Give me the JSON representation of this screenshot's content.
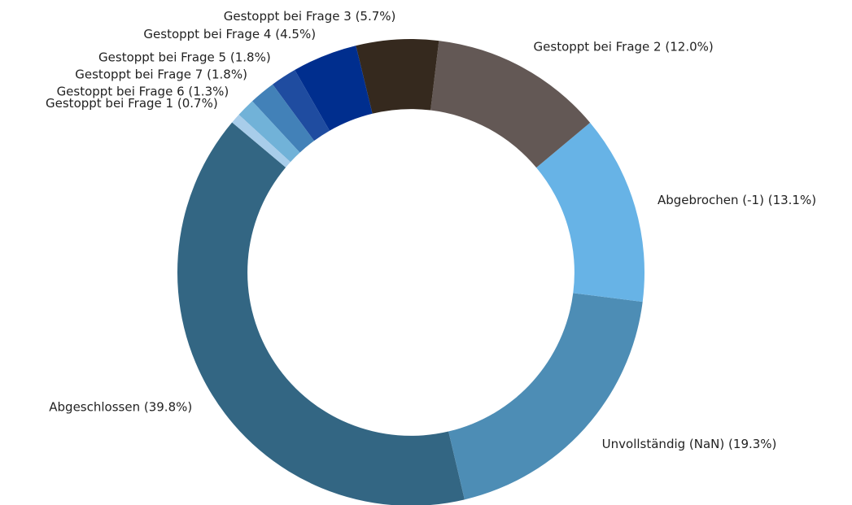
{
  "chart_data": {
    "type": "pie",
    "categories": [
      "Abgeschlossen",
      "Unvollständig (NaN)",
      "Abgebrochen (-1)",
      "Gestoppt bei Frage 2",
      "Gestoppt bei Frage 3",
      "Gestoppt bei Frage 4",
      "Gestoppt bei Frage 5",
      "Gestoppt bei Frage 7",
      "Gestoppt bei Frage 6",
      "Gestoppt bei Frage 1"
    ],
    "values": [
      39.8,
      19.3,
      13.1,
      12.0,
      5.7,
      4.5,
      1.8,
      1.8,
      1.3,
      0.7
    ],
    "value_labels": [
      "(39.8%)",
      "(19.3%)",
      "(13.1%)",
      "(12.0%)",
      "(5.7%)",
      "(4.5%)",
      "(1.8%)",
      "(1.8%)",
      "(1.3%)",
      "(0.7%)"
    ],
    "colors": [
      "#336683",
      "#4d8db5",
      "#67b3e6",
      "#635855",
      "#35291e",
      "#002e8e",
      "#1f4ca0",
      "#4281b8",
      "#71b2d8",
      "#a8cdea"
    ],
    "startangle": 140,
    "donut": true
  }
}
